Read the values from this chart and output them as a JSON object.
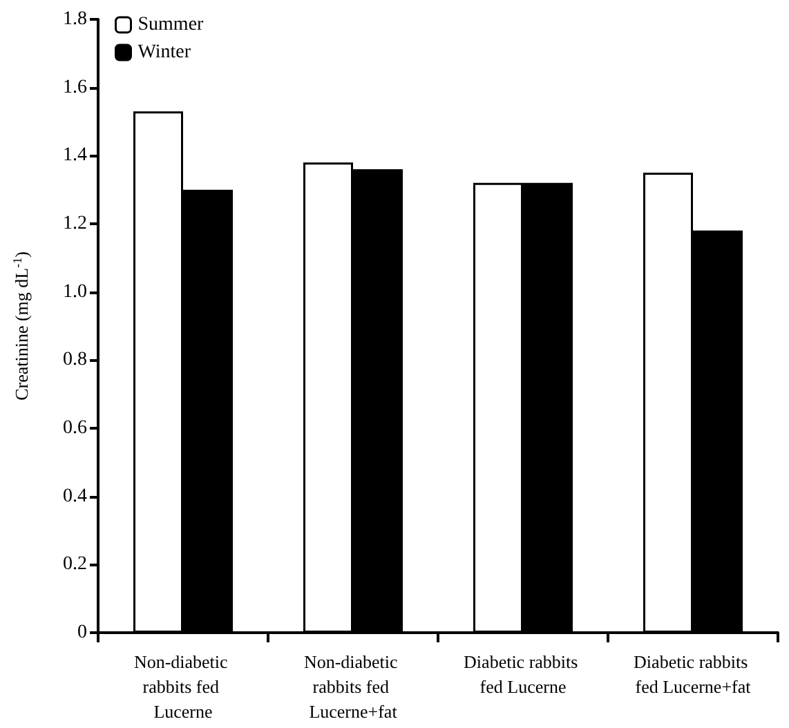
{
  "chart_data": {
    "type": "bar",
    "ylabel": "Creatinine (mg dL$^{-1}$)",
    "categories": [
      "Non-diabetic rabbits fed Lucerne",
      "Non-diabetic rabbits fed Lucerne+fat",
      "Diabetic rabbits fed Lucerne",
      "Diabetic rabbits fed Lucerne+fat"
    ],
    "series": [
      {
        "name": "Summer",
        "color": "#ffffff",
        "values": [
          1.53,
          1.38,
          1.32,
          1.35
        ]
      },
      {
        "name": "Winter",
        "color": "#000000",
        "values": [
          1.3,
          1.36,
          1.32,
          1.18
        ]
      }
    ],
    "ylim": [
      0,
      1.8
    ],
    "yticks": [
      0,
      0.2,
      0.4,
      0.6,
      0.8,
      {
        "value": 1,
        "label": "1.0"
      },
      1.2,
      1.4,
      1.6,
      1.8
    ],
    "grid": false,
    "legend": "top left"
  }
}
